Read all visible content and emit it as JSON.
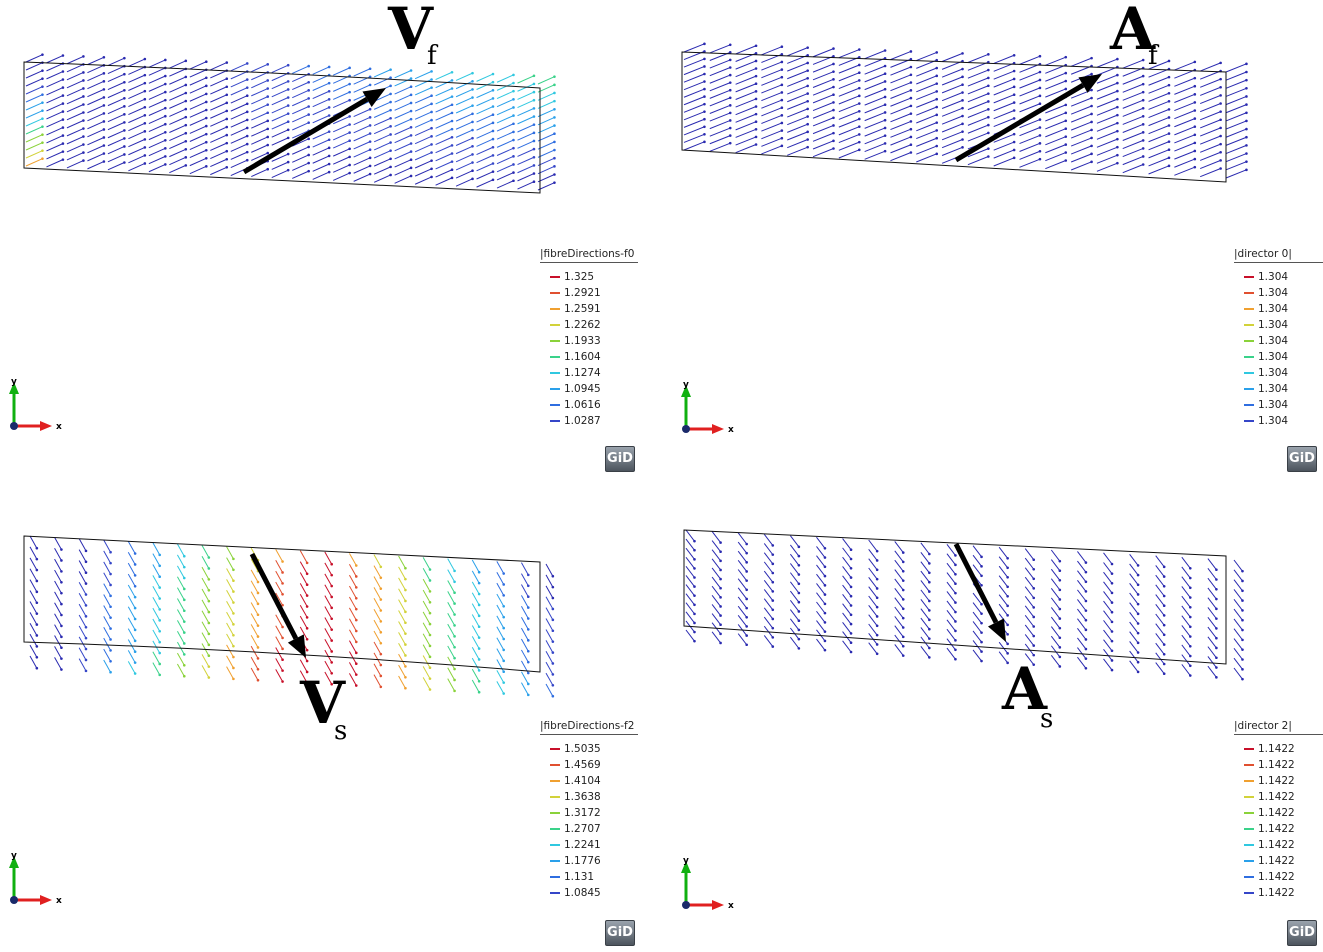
{
  "colors": {
    "colormap": [
      "#2a2ab0",
      "#3546c8",
      "#2f6ee0",
      "#2aa0ea",
      "#30c8e0",
      "#3ad28a",
      "#8ad23a",
      "#d2d23a",
      "#f0a030",
      "#e05030",
      "#c8102a"
    ],
    "outline": "#111111",
    "axis_x": "#e02020",
    "axis_y": "#10b010",
    "axis_z": "#1a2a6a"
  },
  "panels": [
    {
      "id": "vf",
      "label_main": "V",
      "label_sub": "f",
      "legend_title": "|fibreDirections-f0",
      "legend_values": [
        "1.325",
        "1.2921",
        "1.2591",
        "1.2262",
        "1.1933",
        "1.1604",
        "1.1274",
        "1.0945",
        "1.0616",
        "1.0287"
      ],
      "axis_x_label": "x",
      "axis_y_label": "y",
      "badge": "GiD"
    },
    {
      "id": "af",
      "label_main": "A",
      "label_sub": "f",
      "legend_title": "|director 0|",
      "legend_values": [
        "1.304",
        "1.304",
        "1.304",
        "1.304",
        "1.304",
        "1.304",
        "1.304",
        "1.304",
        "1.304",
        "1.304"
      ],
      "axis_x_label": "x",
      "axis_y_label": "y",
      "badge": "GiD"
    },
    {
      "id": "vs",
      "label_main": "V",
      "label_sub": "s",
      "legend_title": "|fibreDirections-f2",
      "legend_values": [
        "1.5035",
        "1.4569",
        "1.4104",
        "1.3638",
        "1.3172",
        "1.2707",
        "1.2241",
        "1.1776",
        "1.131",
        "1.0845"
      ],
      "axis_x_label": "x",
      "axis_y_label": "y",
      "badge": "GiD"
    },
    {
      "id": "as",
      "label_main": "A",
      "label_sub": "s",
      "legend_title": "|director 2|",
      "legend_values": [
        "1.1422",
        "1.1422",
        "1.1422",
        "1.1422",
        "1.1422",
        "1.1422",
        "1.1422",
        "1.1422",
        "1.1422",
        "1.1422"
      ],
      "axis_x_label": "x",
      "axis_y_label": "y",
      "badge": "GiD"
    }
  ]
}
